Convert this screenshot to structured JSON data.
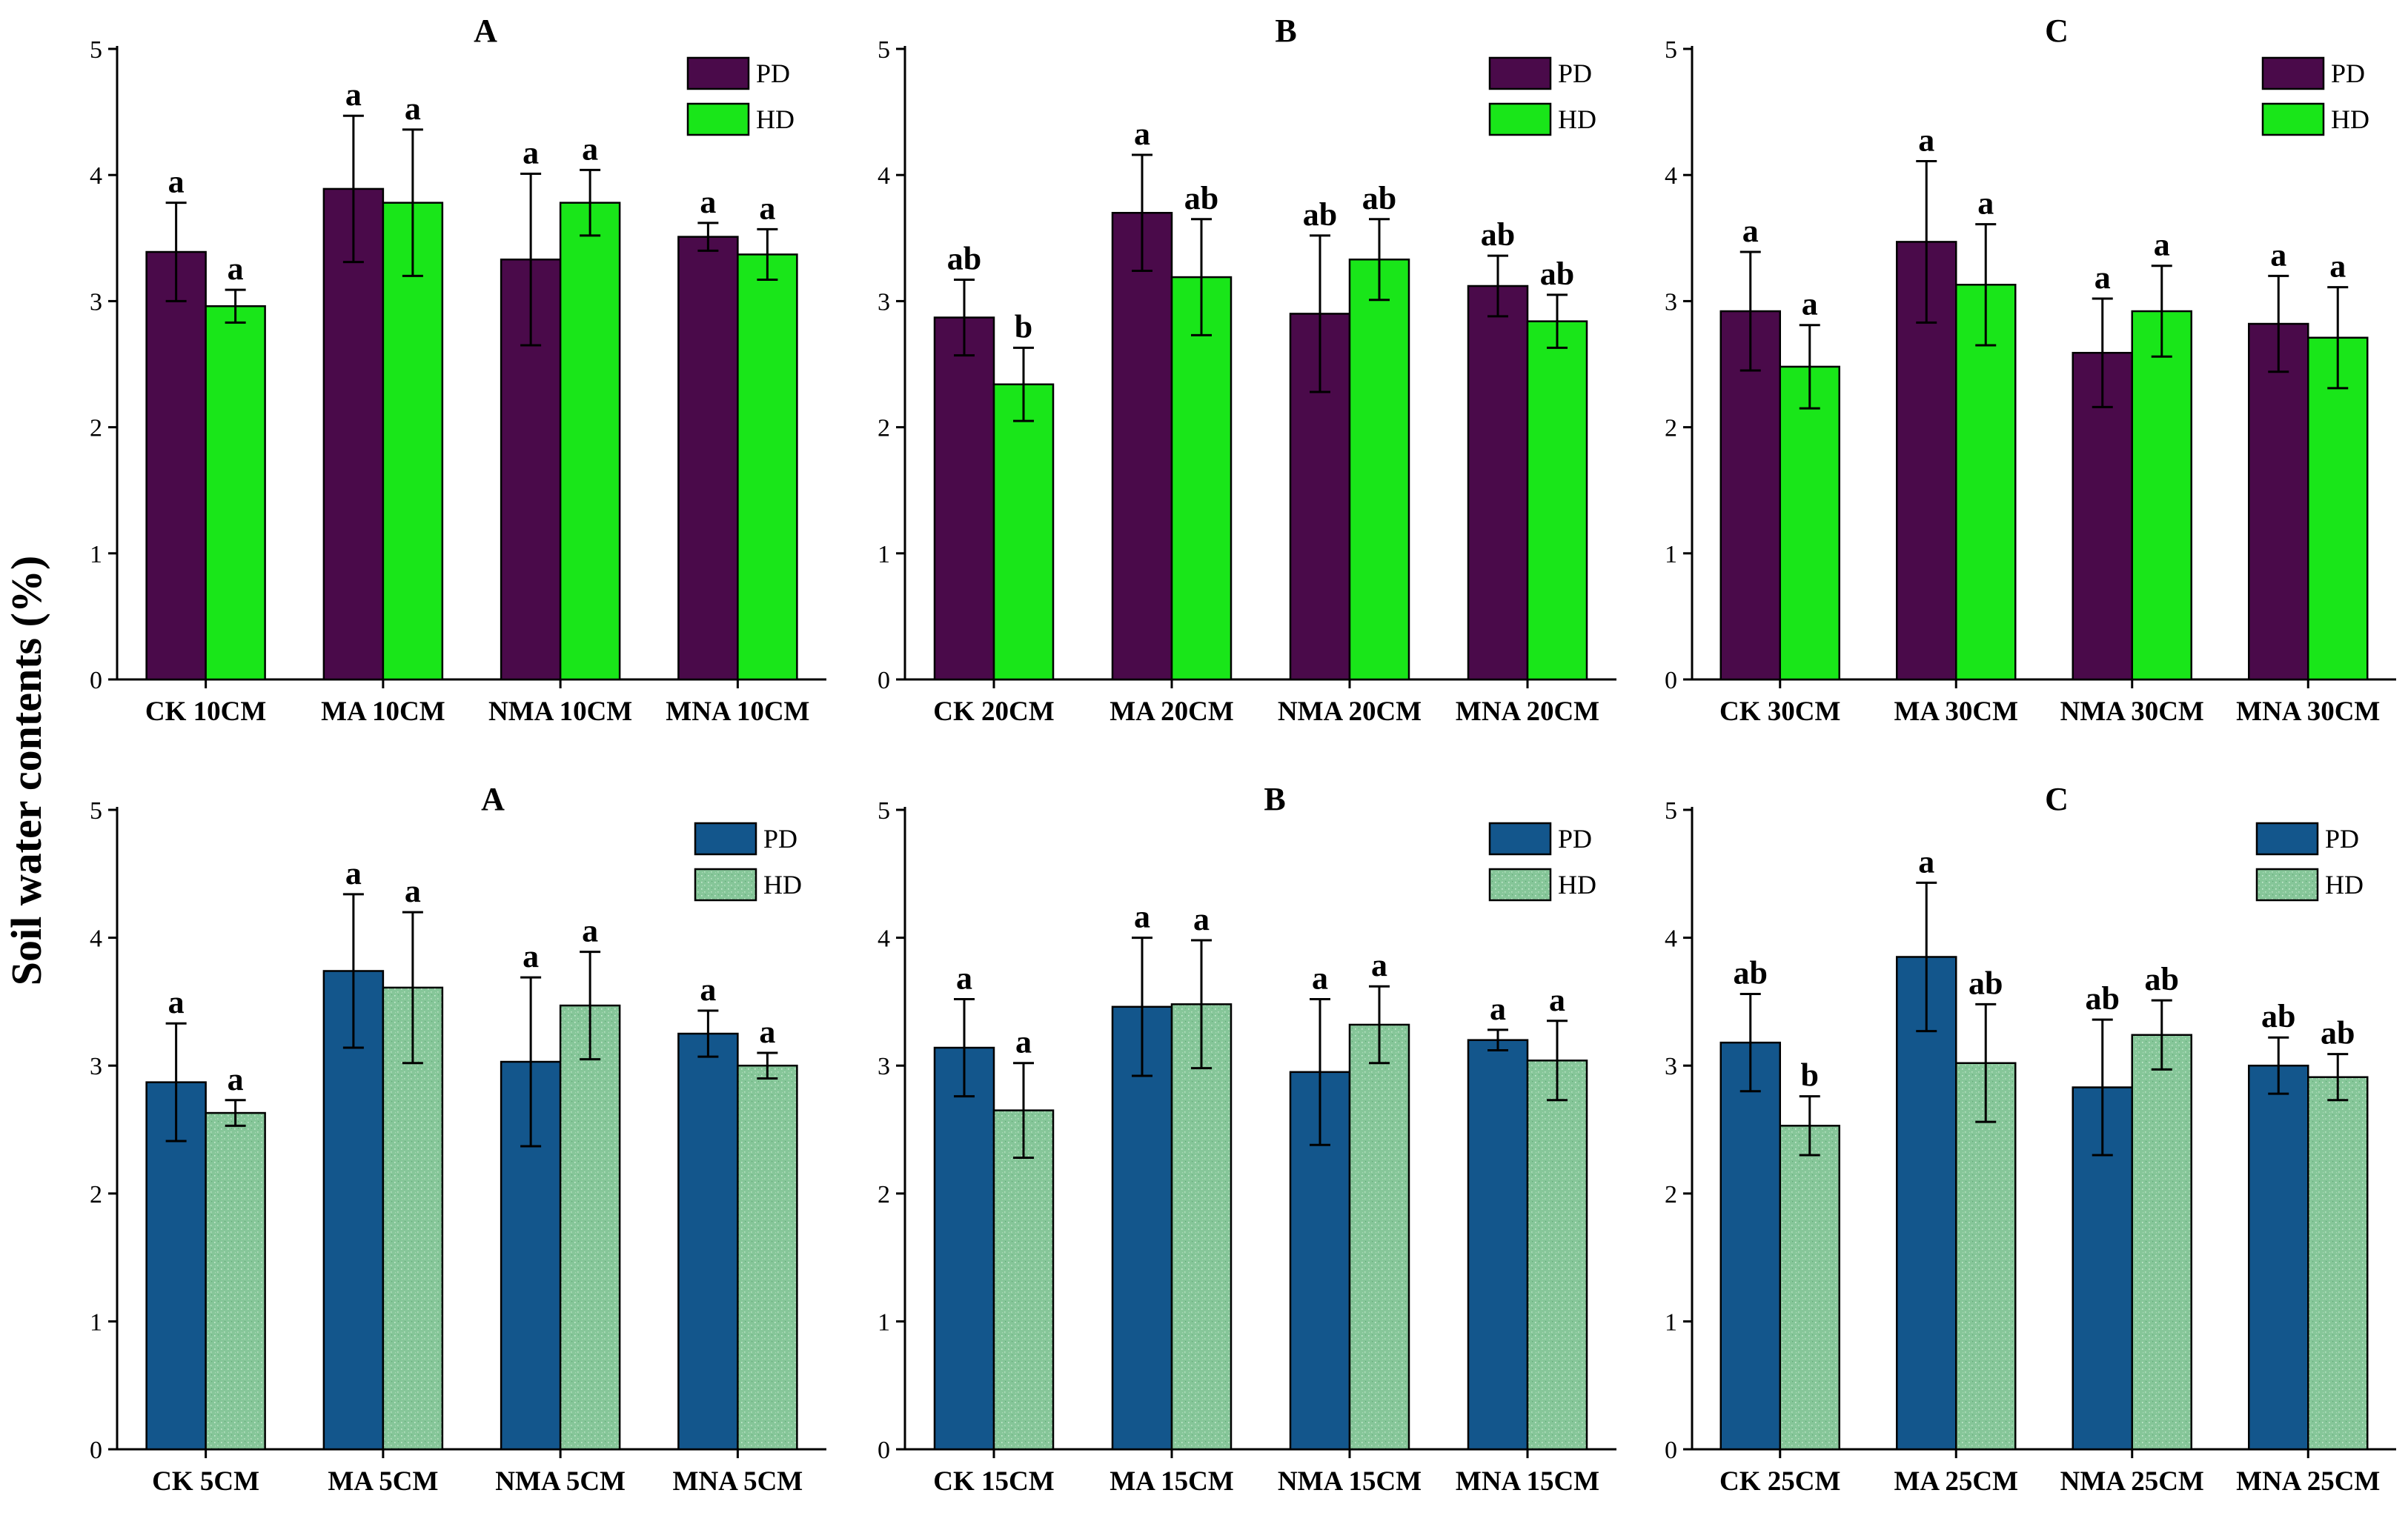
{
  "figure": {
    "y_axis_title": "Soil water contents (%)"
  },
  "colors": {
    "pd_top": "#4a0a4a",
    "hd_top": "#19e619",
    "pd_bottom": "#13568c",
    "hd_bottom": "#88c89a",
    "axis": "#000000"
  },
  "chart_data": [
    {
      "type": "bar",
      "title": "A",
      "palette": "top",
      "ylim": [
        0,
        5
      ],
      "yticks": [
        "0",
        "1",
        "2",
        "3",
        "4",
        "5"
      ],
      "categories": [
        "CK 10CM",
        "MA 10CM",
        "NMA 10CM",
        "MNA 10CM"
      ],
      "legend": [
        "PD",
        "HD"
      ],
      "series": [
        {
          "name": "PD",
          "values": [
            3.39,
            3.89,
            3.33,
            3.51
          ],
          "errors": [
            0.39,
            0.58,
            0.68,
            0.11
          ],
          "letters": [
            "a",
            "a",
            "a",
            "a"
          ]
        },
        {
          "name": "HD",
          "values": [
            2.96,
            3.78,
            3.78,
            3.37
          ],
          "errors": [
            0.13,
            0.58,
            0.26,
            0.2
          ],
          "letters": [
            "a",
            "a",
            "a",
            "a"
          ]
        }
      ]
    },
    {
      "type": "bar",
      "title": "B",
      "palette": "top",
      "ylim": [
        0,
        5
      ],
      "yticks": [
        "0",
        "1",
        "2",
        "3",
        "4",
        "5"
      ],
      "categories": [
        "CK 20CM",
        "MA 20CM",
        "NMA 20CM",
        "MNA 20CM"
      ],
      "legend": [
        "PD",
        "HD"
      ],
      "series": [
        {
          "name": "PD",
          "values": [
            2.87,
            3.7,
            2.9,
            3.12
          ],
          "errors": [
            0.3,
            0.46,
            0.62,
            0.24
          ],
          "letters": [
            "ab",
            "a",
            "ab",
            "ab"
          ]
        },
        {
          "name": "HD",
          "values": [
            2.34,
            3.19,
            3.33,
            2.84
          ],
          "errors": [
            0.29,
            0.46,
            0.32,
            0.21
          ],
          "letters": [
            "b",
            "ab",
            "ab",
            "ab"
          ]
        }
      ]
    },
    {
      "type": "bar",
      "title": "C",
      "palette": "top",
      "ylim": [
        0,
        5
      ],
      "yticks": [
        "0",
        "1",
        "2",
        "3",
        "4",
        "5"
      ],
      "categories": [
        "CK 30CM",
        "MA 30CM",
        "NMA 30CM",
        "MNA 30CM"
      ],
      "legend": [
        "PD",
        "HD"
      ],
      "series": [
        {
          "name": "PD",
          "values": [
            2.92,
            3.47,
            2.59,
            2.82
          ],
          "errors": [
            0.47,
            0.64,
            0.43,
            0.38
          ],
          "letters": [
            "a",
            "a",
            "a",
            "a"
          ]
        },
        {
          "name": "HD",
          "values": [
            2.48,
            3.13,
            2.92,
            2.71
          ],
          "errors": [
            0.33,
            0.48,
            0.36,
            0.4
          ],
          "letters": [
            "a",
            "a",
            "a",
            "a"
          ]
        }
      ]
    },
    {
      "type": "bar",
      "title": "A",
      "palette": "bottom",
      "ylim": [
        0,
        5
      ],
      "yticks": [
        "0",
        "1",
        "2",
        "3",
        "4",
        "5"
      ],
      "categories": [
        "CK 5CM",
        "MA 5CM",
        "NMA 5CM",
        "MNA 5CM"
      ],
      "legend": [
        "PD",
        "HD"
      ],
      "series": [
        {
          "name": "PD",
          "values": [
            2.87,
            3.74,
            3.03,
            3.25
          ],
          "errors": [
            0.46,
            0.6,
            0.66,
            0.18
          ],
          "letters": [
            "a",
            "a",
            "a",
            "a"
          ]
        },
        {
          "name": "HD",
          "values": [
            2.63,
            3.61,
            3.47,
            3.0
          ],
          "errors": [
            0.1,
            0.59,
            0.42,
            0.1
          ],
          "letters": [
            "a",
            "a",
            "a",
            "a"
          ]
        }
      ]
    },
    {
      "type": "bar",
      "title": "B",
      "palette": "bottom",
      "ylim": [
        0,
        5
      ],
      "yticks": [
        "0",
        "1",
        "2",
        "3",
        "4",
        "5"
      ],
      "categories": [
        "CK 15CM",
        "MA 15CM",
        "NMA 15CM",
        "MNA 15CM"
      ],
      "legend": [
        "PD",
        "HD"
      ],
      "series": [
        {
          "name": "PD",
          "values": [
            3.14,
            3.46,
            2.95,
            3.2
          ],
          "errors": [
            0.38,
            0.54,
            0.57,
            0.08
          ],
          "letters": [
            "a",
            "a",
            "a",
            "a"
          ]
        },
        {
          "name": "HD",
          "values": [
            2.65,
            3.48,
            3.32,
            3.04
          ],
          "errors": [
            0.37,
            0.5,
            0.3,
            0.31
          ],
          "letters": [
            "a",
            "a",
            "a",
            "a"
          ]
        }
      ]
    },
    {
      "type": "bar",
      "title": "C",
      "palette": "bottom",
      "ylim": [
        0,
        5
      ],
      "yticks": [
        "0",
        "1",
        "2",
        "3",
        "4",
        "5"
      ],
      "categories": [
        "CK 25CM",
        "MA 25CM",
        "NMA 25CM",
        "MNA 25CM"
      ],
      "legend": [
        "PD",
        "HD"
      ],
      "series": [
        {
          "name": "PD",
          "values": [
            3.18,
            3.85,
            2.83,
            3.0
          ],
          "errors": [
            0.38,
            0.58,
            0.53,
            0.22
          ],
          "letters": [
            "ab",
            "a",
            "ab",
            "ab"
          ]
        },
        {
          "name": "HD",
          "values": [
            2.53,
            3.02,
            3.24,
            2.91
          ],
          "errors": [
            0.23,
            0.46,
            0.27,
            0.18
          ],
          "letters": [
            "b",
            "ab",
            "ab",
            "ab"
          ]
        }
      ]
    }
  ]
}
